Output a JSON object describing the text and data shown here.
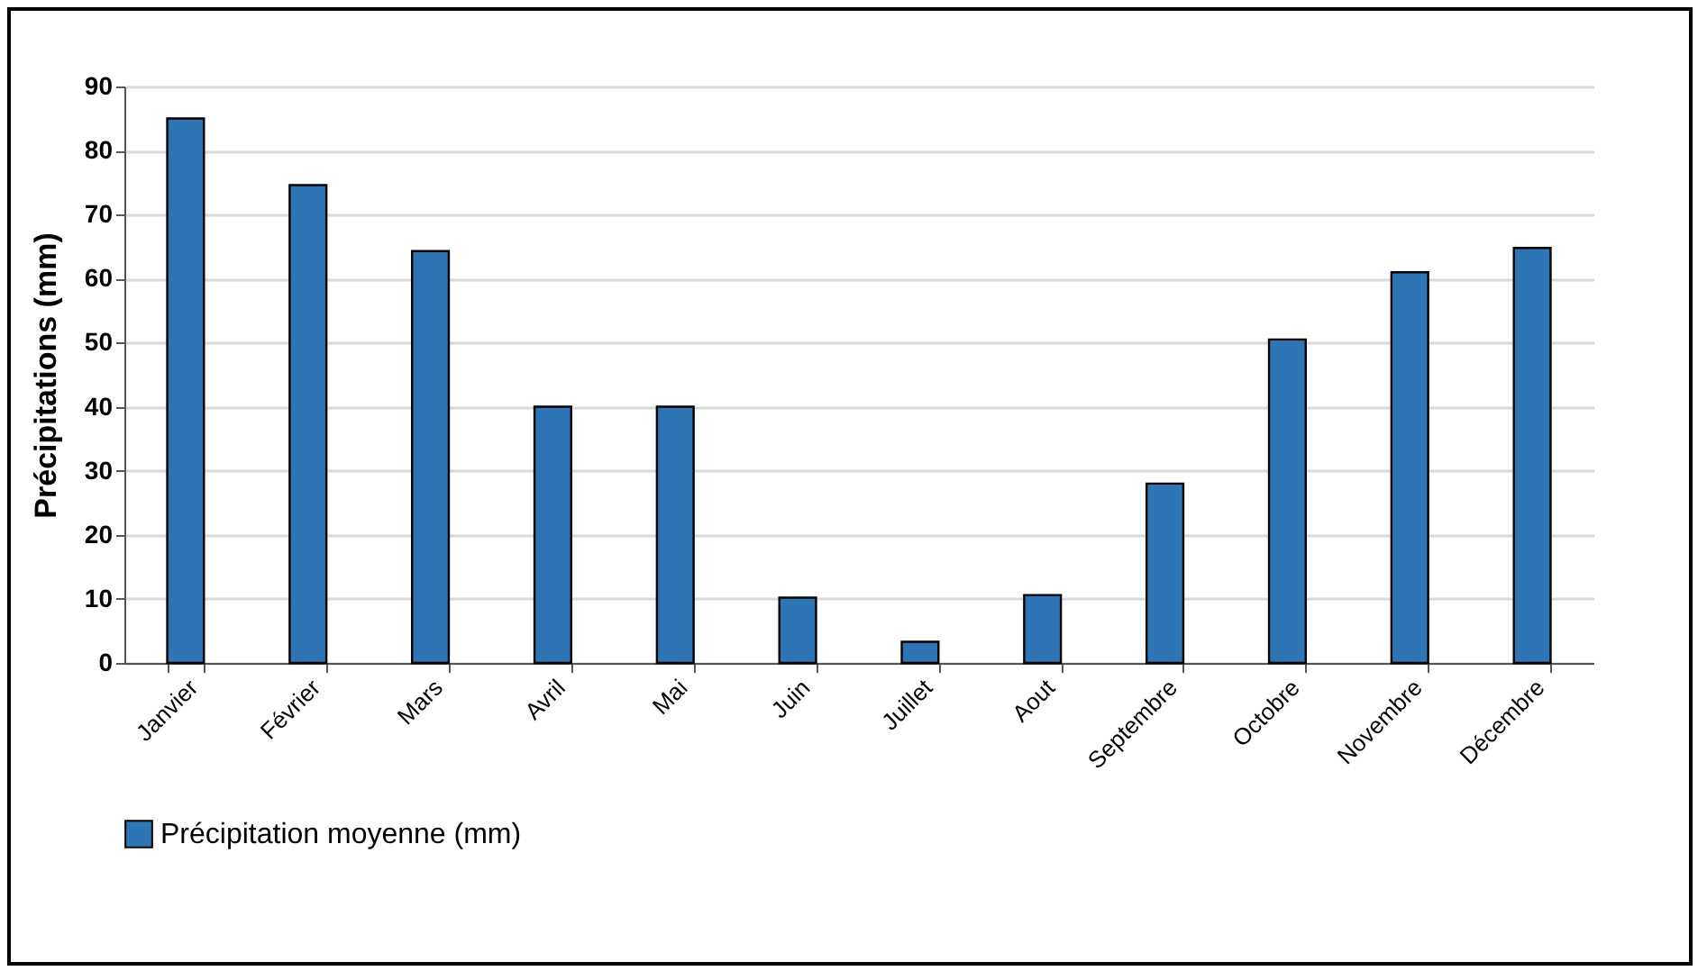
{
  "chart_data": {
    "type": "bar",
    "ylabel": "Précipitations (mm)",
    "categories": [
      "Janvier",
      "Février",
      "Mars",
      "Avril",
      "Mai",
      "Juin",
      "Juillet",
      "Aout",
      "Septembre",
      "Octobre",
      "Novembre",
      "Décembre"
    ],
    "series": [
      {
        "name": "Précipitation moyenne (mm)",
        "color": "#2e75b6",
        "values": [
          85,
          74.6,
          64.3,
          40,
          40,
          10.2,
          3.3,
          10.6,
          28,
          50.5,
          61,
          64.8
        ]
      }
    ],
    "ylim": [
      0,
      90
    ],
    "yticks": [
      0,
      10,
      20,
      30,
      40,
      50,
      60,
      70,
      80,
      90
    ],
    "grid": "y",
    "legend": "bottom"
  }
}
